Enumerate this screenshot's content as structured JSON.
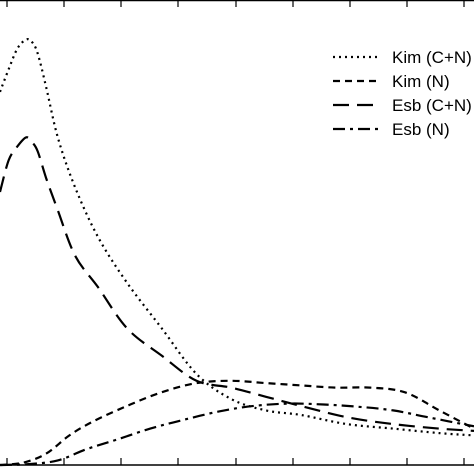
{
  "chart_data": {
    "type": "line",
    "title": "",
    "xlabel": "",
    "ylabel": "",
    "grid": false,
    "legend_position": "top-right",
    "x_range": [
      0,
      8.2
    ],
    "y_range": [
      0,
      1.0
    ],
    "series": [
      {
        "name": "Kim (C+N)",
        "dash": "dotted",
        "x": [
          0,
          0.15,
          0.3,
          0.45,
          0.55,
          0.65,
          0.8,
          1.0,
          1.3,
          1.7,
          2.2,
          2.8,
          3.4,
          4.0,
          4.6,
          5.2,
          6.0,
          6.8,
          7.6,
          8.2
        ],
        "y": [
          0.82,
          0.87,
          0.915,
          0.935,
          0.93,
          0.905,
          0.83,
          0.72,
          0.61,
          0.5,
          0.4,
          0.3,
          0.2,
          0.145,
          0.12,
          0.11,
          0.09,
          0.08,
          0.07,
          0.065
        ]
      },
      {
        "name": "Kim (N)",
        "dash": "dashed",
        "x": [
          0,
          0.4,
          0.8,
          1.2,
          1.6,
          2.2,
          2.8,
          3.4,
          4.0,
          4.6,
          5.2,
          5.8,
          6.4,
          7.0,
          7.6,
          8.2
        ],
        "y": [
          0.0,
          0.005,
          0.025,
          0.065,
          0.095,
          0.13,
          0.16,
          0.18,
          0.185,
          0.18,
          0.175,
          0.17,
          0.17,
          0.16,
          0.12,
          0.08
        ]
      },
      {
        "name": "Esb (C+N)",
        "dash": "long-dash",
        "x": [
          0,
          0.15,
          0.3,
          0.45,
          0.55,
          0.65,
          0.8,
          1.0,
          1.3,
          1.7,
          2.2,
          2.8,
          3.4,
          4.0,
          4.6,
          5.2,
          6.0,
          6.8,
          7.6,
          8.2
        ],
        "y": [
          0.6,
          0.67,
          0.7,
          0.72,
          0.71,
          0.69,
          0.63,
          0.56,
          0.46,
          0.39,
          0.3,
          0.24,
          0.185,
          0.17,
          0.15,
          0.13,
          0.105,
          0.09,
          0.08,
          0.075
        ]
      },
      {
        "name": "Esb (N)",
        "dash": "dash-dot",
        "x": [
          0,
          0.5,
          1.0,
          1.5,
          2.0,
          2.6,
          3.2,
          3.8,
          4.4,
          5.0,
          5.6,
          6.2,
          6.8,
          7.4,
          8.2
        ],
        "y": [
          0.0,
          0.002,
          0.01,
          0.035,
          0.055,
          0.08,
          0.1,
          0.118,
          0.13,
          0.135,
          0.133,
          0.128,
          0.12,
          0.105,
          0.085
        ]
      }
    ]
  }
}
